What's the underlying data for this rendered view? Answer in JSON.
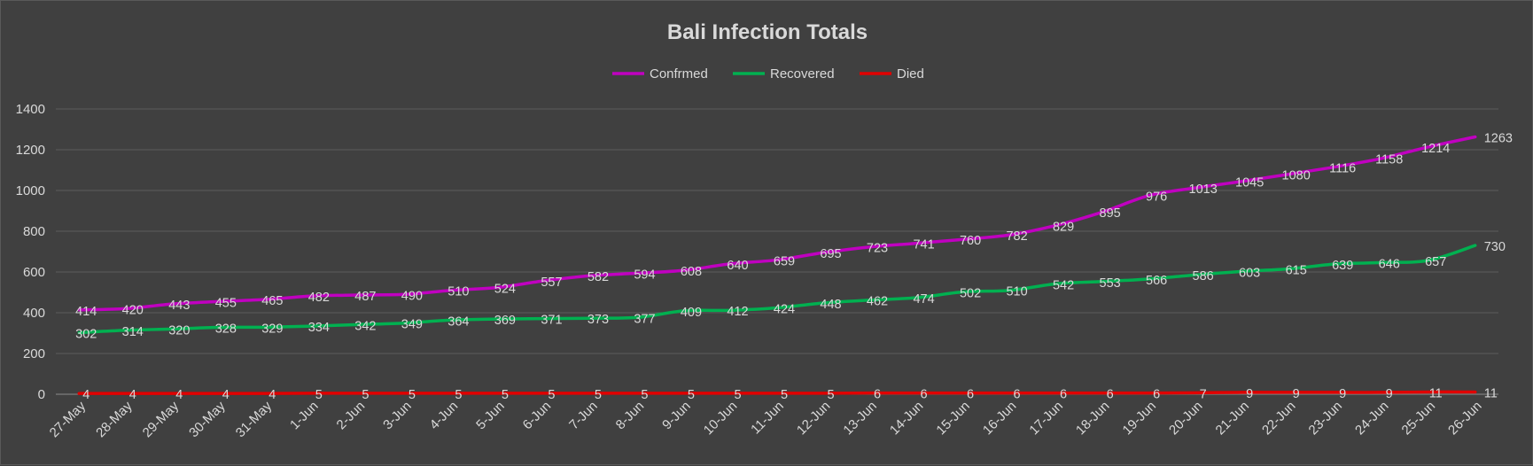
{
  "chart_data": {
    "type": "line",
    "title": "Bali Infection Totals",
    "xlabel": "",
    "ylabel": "",
    "ylim": [
      0,
      1400
    ],
    "yticks": [
      0,
      200,
      400,
      600,
      800,
      1000,
      1200,
      1400
    ],
    "grid": true,
    "legend_position": "top",
    "categories": [
      "27-May",
      "28-May",
      "29-May",
      "30-May",
      "31-May",
      "1-Jun",
      "2-Jun",
      "3-Jun",
      "4-Jun",
      "5-Jun",
      "6-Jun",
      "7-Jun",
      "8-Jun",
      "9-Jun",
      "10-Jun",
      "11-Jun",
      "12-Jun",
      "13-Jun",
      "14-Jun",
      "15-Jun",
      "16-Jun",
      "17-Jun",
      "18-Jun",
      "19-Jun",
      "20-Jun",
      "21-Jun",
      "22-Jun",
      "23-Jun",
      "24-Jun",
      "25-Jun",
      "26-Jun"
    ],
    "series": [
      {
        "name": "Confrmed",
        "color": "#c000c0",
        "values": [
          414,
          420,
          443,
          455,
          465,
          482,
          487,
          490,
          510,
          524,
          557,
          582,
          594,
          608,
          640,
          659,
          695,
          723,
          741,
          760,
          782,
          829,
          895,
          976,
          1013,
          1045,
          1080,
          1116,
          1158,
          1214,
          1263
        ]
      },
      {
        "name": "Recovered",
        "color": "#00b050",
        "values": [
          302,
          314,
          320,
          328,
          329,
          334,
          342,
          349,
          364,
          369,
          371,
          373,
          377,
          409,
          412,
          424,
          448,
          462,
          474,
          502,
          510,
          542,
          553,
          566,
          586,
          603,
          615,
          639,
          646,
          657,
          730
        ]
      },
      {
        "name": "Died",
        "color": "#e00000",
        "values": [
          4,
          4,
          4,
          4,
          4,
          5,
          5,
          5,
          5,
          5,
          5,
          5,
          5,
          5,
          5,
          5,
          5,
          6,
          6,
          6,
          6,
          6,
          6,
          6,
          7,
          9,
          9,
          9,
          9,
          11,
          11
        ]
      }
    ]
  }
}
